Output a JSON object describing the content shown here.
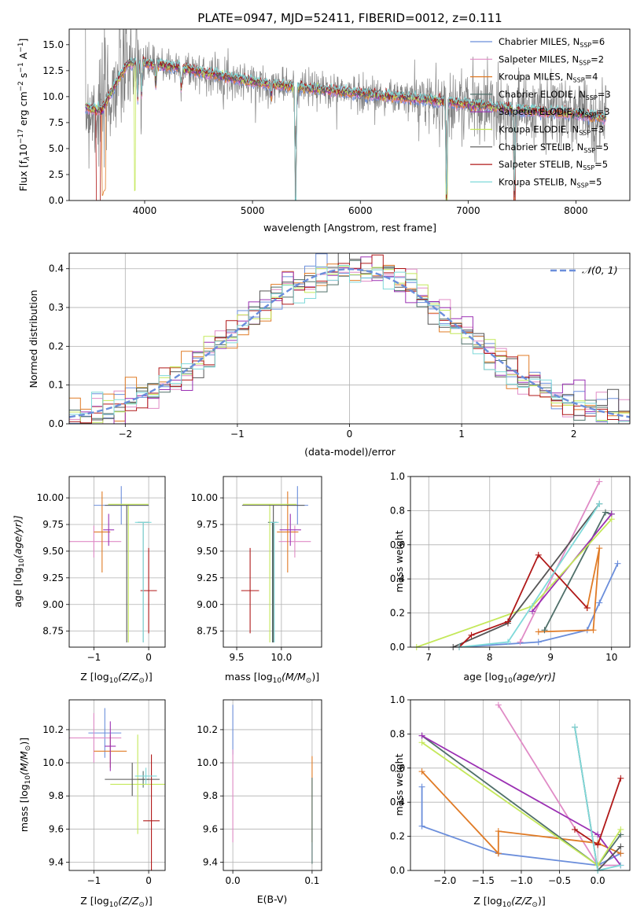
{
  "series_styles": [
    {
      "key": "chabrier_miles",
      "color": "#6b8edb"
    },
    {
      "key": "salpeter_miles",
      "color": "#e08bc6"
    },
    {
      "key": "kroupa_miles",
      "color": "#e07b26"
    },
    {
      "key": "chabrier_elodie",
      "color": "#50706a"
    },
    {
      "key": "salpeter_elodie",
      "color": "#9b30b3"
    },
    {
      "key": "kroupa_elodie",
      "color": "#c4e85a"
    },
    {
      "key": "chabrier_stelib",
      "color": "#555555"
    },
    {
      "key": "salpeter_stelib",
      "color": "#b01818"
    },
    {
      "key": "kroupa_stelib",
      "color": "#7fd9d9"
    }
  ],
  "chart_data": [
    {
      "id": "spectrum",
      "type": "line",
      "title": "PLATE=0947, MJD=52411, FIBERID=0012, z=0.111",
      "xlabel": "wavelength [Angstrom, rest frame]",
      "ylabel": "Flux [f",
      "xlim": [
        3300,
        8500
      ],
      "ylim": [
        0,
        16.5
      ],
      "xticks": [
        "4000",
        "5000",
        "6000",
        "7000",
        "8000"
      ],
      "yticks": [
        "0.0",
        "2.5",
        "5.0",
        "7.5",
        "10.0",
        "12.5",
        "15.0"
      ],
      "legend_position": "upper right",
      "legend": [
        {
          "name": "Chabrier MILES, N",
          "n": "=6"
        },
        {
          "name": "Salpeter MILES, N",
          "n": "=2"
        },
        {
          "name": "Kroupa MILES, N",
          "n": "=4"
        },
        {
          "name": "Chabrier ELODIE, N",
          "n": "=3"
        },
        {
          "name": "Salpeter ELODIE, N",
          "n": "=3"
        },
        {
          "name": "Kroupa ELODIE, N",
          "n": "=3"
        },
        {
          "name": "Chabrier STELIB, N",
          "n": "=5"
        },
        {
          "name": "Salpeter STELIB, N",
          "n": "=5"
        },
        {
          "name": "Kroupa STELIB, N",
          "n": "=5"
        }
      ],
      "legend_sub": "SSP",
      "continuum": [
        [
          3450,
          9.0
        ],
        [
          3600,
          8.6
        ],
        [
          3750,
          11.6
        ],
        [
          3850,
          13.2
        ],
        [
          4000,
          13.2
        ],
        [
          4200,
          13.0
        ],
        [
          4500,
          12.4
        ],
        [
          5000,
          11.4
        ],
        [
          5500,
          10.8
        ],
        [
          6000,
          10.3
        ],
        [
          6500,
          9.8
        ],
        [
          7000,
          9.3
        ],
        [
          7500,
          8.7
        ],
        [
          8000,
          8.3
        ],
        [
          8280,
          8.0
        ]
      ],
      "data_noise": 1.3,
      "absorption_dips": [
        [
          3935,
          3.5
        ],
        [
          3970,
          3.0
        ],
        [
          4102,
          2.0
        ],
        [
          4340,
          2.0
        ],
        [
          5175,
          1.2
        ],
        [
          5400,
          11.0
        ],
        [
          6800,
          10.0
        ],
        [
          7430,
          9.0
        ]
      ]
    },
    {
      "id": "residuals",
      "type": "histogram",
      "xlabel": "(data-model)/error",
      "ylabel": "Normed distribution",
      "xlim": [
        -2.5,
        2.5
      ],
      "ylim": [
        0,
        0.44
      ],
      "xticks": [
        "−2",
        "−1",
        "0",
        "1",
        "2"
      ],
      "yticks": [
        "0.0",
        "0.1",
        "0.2",
        "0.3",
        "0.4"
      ],
      "grid": true,
      "legend_position": "upper right",
      "reference_curve": "𝒩(0, 1)",
      "bin_width": 0.1
    },
    {
      "id": "age_vs_Z",
      "type": "errorbar",
      "xlabel": "Z [log",
      "xlabel_tail": "(Z/Z",
      "ylabel": "age  [log",
      "ylabel_tail": "(age/yr)]",
      "xlim": [
        -1.45,
        0.3
      ],
      "ylim": [
        8.6,
        10.2
      ],
      "xticks": [
        "−1",
        "0"
      ],
      "yticks": [
        "8.75",
        "9.00",
        "9.25",
        "9.50",
        "9.75",
        "10.00"
      ],
      "grid": true,
      "points": [
        {
          "x": -0.5,
          "xerr": 0.5,
          "y": 9.93,
          "yerr": 0.18
        },
        {
          "x": -1.0,
          "xerr": 0.5,
          "y": 9.59,
          "yerr": 0.15
        },
        {
          "x": -0.85,
          "xerr": 0.15,
          "y": 9.68,
          "yerr": 0.38
        },
        {
          "x": -0.1,
          "xerr": 0.1,
          "y": 9.77,
          "yerr": 0.0
        },
        {
          "x": -0.73,
          "xerr": 0.1,
          "y": 9.7,
          "yerr": 0.15
        },
        {
          "x": -0.37,
          "xerr": 0.37,
          "y": 9.94,
          "yerr": 0.0
        },
        {
          "x": -0.4,
          "xerr": 0.4,
          "y": 9.93,
          "yerr": 0.0
        },
        {
          "x": 0.0,
          "xerr": 0.15,
          "y": 9.13,
          "yerr": 0.4
        },
        {
          "x": -0.1,
          "xerr": 0.15,
          "y": 9.77,
          "yerr": 0.0
        }
      ]
    },
    {
      "id": "age_vs_mass",
      "type": "errorbar",
      "xlabel": "mass [log",
      "xlabel_tail": "(M/M",
      "xlim": [
        9.35,
        10.45
      ],
      "ylim": [
        8.6,
        10.2
      ],
      "xticks": [
        "9.5",
        "10.0"
      ],
      "yticks": [
        "8.75",
        "9.00",
        "9.25",
        "9.50",
        "9.75",
        "10.00"
      ],
      "grid": true,
      "points": [
        {
          "x": 10.18,
          "xerr": 0.12,
          "y": 9.93,
          "yerr": 0.18
        },
        {
          "x": 10.15,
          "xerr": 0.18,
          "y": 9.59,
          "yerr": 0.15
        },
        {
          "x": 10.07,
          "xerr": 0.12,
          "y": 9.68,
          "yerr": 0.38
        },
        {
          "x": 9.9,
          "xerr": 0.05,
          "y": 9.77,
          "yerr": 0.0
        },
        {
          "x": 10.1,
          "xerr": 0.12,
          "y": 9.7,
          "yerr": 0.15
        },
        {
          "x": 9.87,
          "xerr": 0.3,
          "y": 9.94,
          "yerr": 0.0
        },
        {
          "x": 9.91,
          "xerr": 0.35,
          "y": 9.93,
          "yerr": 0.0
        },
        {
          "x": 9.65,
          "xerr": 0.1,
          "y": 9.13,
          "yerr": 0.4
        },
        {
          "x": 9.92,
          "xerr": 0.05,
          "y": 9.77,
          "yerr": 0.0
        }
      ]
    },
    {
      "id": "weight_vs_age",
      "type": "line",
      "xlabel": "age  [log",
      "xlabel_tail": "(age/yr)]",
      "ylabel": "mass weight",
      "xlim": [
        6.7,
        10.3
      ],
      "ylim": [
        0.0,
        1.0
      ],
      "xticks": [
        "7",
        "8",
        "9",
        "10"
      ],
      "yticks": [
        "0.0",
        "0.2",
        "0.4",
        "0.6",
        "0.8",
        "1.0"
      ],
      "grid": true,
      "series": [
        {
          "points": [
            [
              7.5,
              0.0
            ],
            [
              8.8,
              0.03
            ],
            [
              9.6,
              0.1
            ],
            [
              9.8,
              0.26
            ],
            [
              10.1,
              0.49
            ]
          ]
        },
        {
          "points": [
            [
              8.5,
              0.03
            ],
            [
              9.8,
              0.97
            ]
          ]
        },
        {
          "points": [
            [
              8.8,
              0.09
            ],
            [
              9.7,
              0.1
            ],
            [
              9.8,
              0.58
            ],
            [
              9.6,
              0.23
            ]
          ]
        },
        {
          "points": [
            [
              8.9,
              0.1
            ],
            [
              9.9,
              0.79
            ],
            [
              10.0,
              0.78
            ]
          ]
        },
        {
          "points": [
            [
              8.7,
              0.21
            ],
            [
              10.0,
              0.78
            ]
          ]
        },
        {
          "points": [
            [
              6.8,
              0.0
            ],
            [
              8.7,
              0.24
            ],
            [
              10.0,
              0.75
            ]
          ]
        },
        {
          "points": [
            [
              7.4,
              0.0
            ],
            [
              8.3,
              0.14
            ],
            [
              9.8,
              0.84
            ]
          ]
        },
        {
          "points": [
            [
              7.5,
              0.0
            ],
            [
              7.7,
              0.07
            ],
            [
              8.3,
              0.15
            ],
            [
              8.8,
              0.54
            ],
            [
              9.6,
              0.23
            ]
          ]
        },
        {
          "points": [
            [
              7.5,
              0.0
            ],
            [
              8.3,
              0.03
            ],
            [
              9.8,
              0.84
            ]
          ]
        }
      ]
    },
    {
      "id": "mass_vs_Z",
      "type": "errorbar",
      "xlabel": "Z [log",
      "xlabel_tail": "(Z/Z",
      "ylabel": "mass [log",
      "ylabel_tail": "(M/M",
      "xlim": [
        -1.45,
        0.3
      ],
      "ylim": [
        9.35,
        10.38
      ],
      "xticks": [
        "−1",
        "0"
      ],
      "yticks": [
        "9.4",
        "9.6",
        "9.8",
        "10.0",
        "10.2"
      ],
      "grid": true,
      "points": [
        {
          "x": -0.8,
          "xerr": 0.3,
          "y": 10.18,
          "yerr": 0.15
        },
        {
          "x": -1.0,
          "xerr": 0.5,
          "y": 10.15,
          "yerr": 0.15
        },
        {
          "x": -0.7,
          "xerr": 0.3,
          "y": 10.07,
          "yerr": 0.1
        },
        {
          "x": -0.1,
          "xerr": 0.1,
          "y": 9.9,
          "yerr": 0.05
        },
        {
          "x": -0.7,
          "xerr": 0.1,
          "y": 10.1,
          "yerr": 0.15
        },
        {
          "x": -0.2,
          "xerr": 0.5,
          "y": 9.87,
          "yerr": 0.3
        },
        {
          "x": -0.3,
          "xerr": 0.5,
          "y": 9.9,
          "yerr": 0.1
        },
        {
          "x": 0.05,
          "xerr": 0.15,
          "y": 9.65,
          "yerr": 0.4
        },
        {
          "x": -0.05,
          "xerr": 0.2,
          "y": 9.92,
          "yerr": 0.05
        }
      ]
    },
    {
      "id": "mass_vs_ebv",
      "type": "errorbar",
      "xlabel": "E(B-V)",
      "xlim": [
        -0.012,
        0.112
      ],
      "ylim": [
        9.35,
        10.38
      ],
      "xticks": [
        "0.0",
        "0.1"
      ],
      "yticks": [
        "9.4",
        "9.6",
        "9.8",
        "10.0",
        "10.2"
      ],
      "grid": true,
      "points": [
        {
          "x": 0.0,
          "xerr": 0.0,
          "y": 10.2,
          "yerr": 0.15
        },
        {
          "x": 0.0,
          "xerr": 0.0,
          "y": 9.8,
          "yerr": 0.28
        },
        {
          "x": 0.1,
          "xerr": 0.0,
          "y": 9.78,
          "yerr": 0.26
        },
        {
          "x": 0.1,
          "xerr": 0.0,
          "y": 9.65,
          "yerr": 0.26
        }
      ]
    },
    {
      "id": "weight_vs_Z",
      "type": "line",
      "xlabel": "Z [log",
      "xlabel_tail": "(Z/Z",
      "ylabel": "mass weight",
      "xlim": [
        -2.45,
        0.42
      ],
      "ylim": [
        0.0,
        1.0
      ],
      "xticks": [
        "−2.0",
        "−1.5",
        "−1.0",
        "−0.5",
        "0.0"
      ],
      "yticks": [
        "0.0",
        "0.2",
        "0.4",
        "0.6",
        "0.8",
        "1.0"
      ],
      "grid": true,
      "series": [
        {
          "points": [
            [
              -2.3,
              0.49
            ],
            [
              -2.3,
              0.26
            ],
            [
              -1.3,
              0.1
            ],
            [
              0.0,
              0.03
            ],
            [
              0.3,
              0.1
            ]
          ]
        },
        {
          "points": [
            [
              -1.3,
              0.97
            ],
            [
              0.0,
              0.03
            ],
            [
              0.3,
              0.03
            ]
          ]
        },
        {
          "points": [
            [
              -2.3,
              0.58
            ],
            [
              -1.3,
              0.1
            ],
            [
              -1.3,
              0.23
            ],
            [
              0.0,
              0.16
            ],
            [
              0.3,
              0.1
            ]
          ]
        },
        {
          "points": [
            [
              -2.3,
              0.79
            ],
            [
              0.0,
              0.03
            ],
            [
              0.3,
              0.21
            ]
          ]
        },
        {
          "points": [
            [
              -2.3,
              0.79
            ],
            [
              0.0,
              0.21
            ],
            [
              0.3,
              0.03
            ]
          ]
        },
        {
          "points": [
            [
              -2.3,
              0.75
            ],
            [
              0.0,
              0.03
            ],
            [
              0.3,
              0.24
            ]
          ]
        },
        {
          "points": [
            [
              -0.3,
              0.84
            ],
            [
              0.0,
              0.0
            ],
            [
              0.3,
              0.14
            ]
          ]
        },
        {
          "points": [
            [
              -0.3,
              0.24
            ],
            [
              0.0,
              0.15
            ],
            [
              0.3,
              0.54
            ]
          ]
        },
        {
          "points": [
            [
              -0.3,
              0.84
            ],
            [
              0.0,
              0.0
            ],
            [
              0.3,
              0.03
            ]
          ]
        }
      ]
    }
  ]
}
